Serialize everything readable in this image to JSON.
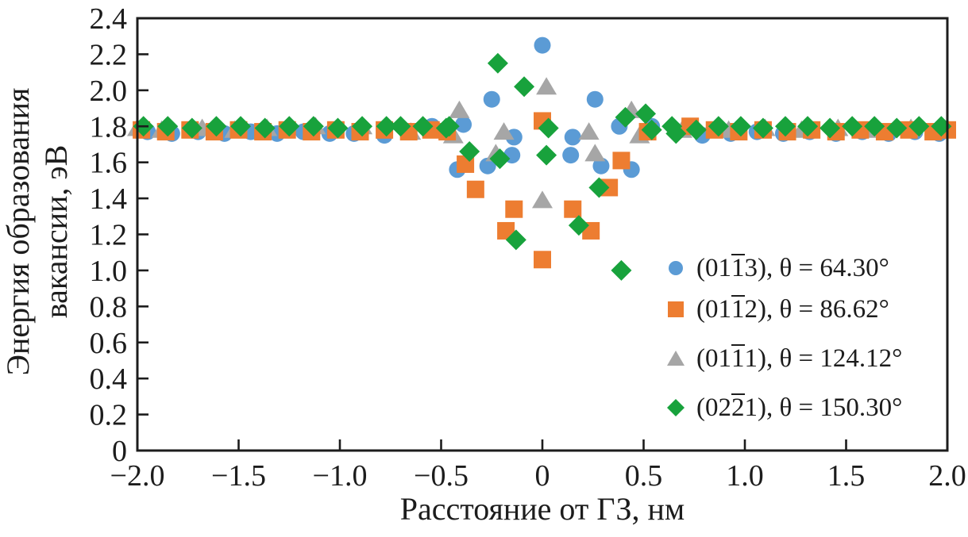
{
  "figure": {
    "kind": "scatter-plot-figure",
    "background": "#ffffff",
    "text_color": "#1c1c1c",
    "axis_color": "#1c1c1c"
  },
  "chart_data": {
    "type": "scatter",
    "title": "",
    "xlabel": "Расстояние от ГЗ, нм",
    "ylabel_lines": [
      "Энергия образования",
      "вакансии, эВ"
    ],
    "xlim": [
      -2.0,
      2.0
    ],
    "ylim": [
      0,
      2.4
    ],
    "grid": false,
    "legend_position": "inside lower right",
    "x_ticks": [
      {
        "value": -2.0,
        "label": "−2.0"
      },
      {
        "value": -1.5,
        "label": "−1.5"
      },
      {
        "value": -1.0,
        "label": "−1.0"
      },
      {
        "value": -0.5,
        "label": "−0.5"
      },
      {
        "value": 0.0,
        "label": "0"
      },
      {
        "value": 0.5,
        "label": "0.5"
      },
      {
        "value": 1.0,
        "label": "1.0"
      },
      {
        "value": 1.5,
        "label": "1.5"
      },
      {
        "value": 2.0,
        "label": "2.0"
      }
    ],
    "y_ticks": [
      {
        "value": 0.0,
        "label": "0"
      },
      {
        "value": 0.2,
        "label": "0.2"
      },
      {
        "value": 0.4,
        "label": "0.4"
      },
      {
        "value": 0.6,
        "label": "0.6"
      },
      {
        "value": 0.8,
        "label": "0.8"
      },
      {
        "value": 1.0,
        "label": "1.0"
      },
      {
        "value": 1.2,
        "label": "1.2"
      },
      {
        "value": 1.4,
        "label": "1.4"
      },
      {
        "value": 1.6,
        "label": "1.6"
      },
      {
        "value": 1.8,
        "label": "1.8"
      },
      {
        "value": 2.0,
        "label": "2.0"
      },
      {
        "value": 2.2,
        "label": "2.2"
      },
      {
        "value": 2.4,
        "label": "2.4"
      }
    ],
    "series": [
      {
        "name": "(011̅3), θ = 64.30°",
        "plane": "(011̅3)",
        "theta": "64.30°",
        "marker": "circle",
        "color": "#5b9bd5",
        "legend": {
          "pre": "(01",
          "bar": "1",
          "post": "3), θ = 64.30°"
        },
        "points": [
          [
            -1.95,
            1.77
          ],
          [
            -1.83,
            1.76
          ],
          [
            -1.7,
            1.77
          ],
          [
            -1.57,
            1.76
          ],
          [
            -1.44,
            1.77
          ],
          [
            -1.31,
            1.76
          ],
          [
            -1.18,
            1.77
          ],
          [
            -1.05,
            1.76
          ],
          [
            -0.93,
            1.76
          ],
          [
            -0.78,
            1.75
          ],
          [
            -0.545,
            1.8
          ],
          [
            -0.42,
            1.56
          ],
          [
            -0.39,
            1.81
          ],
          [
            -0.27,
            1.58
          ],
          [
            -0.25,
            1.95
          ],
          [
            -0.15,
            1.64
          ],
          [
            -0.14,
            1.74
          ],
          [
            0.0,
            2.25
          ],
          [
            0.14,
            1.64
          ],
          [
            0.15,
            1.74
          ],
          [
            0.26,
            1.95
          ],
          [
            0.29,
            1.58
          ],
          [
            0.38,
            1.8
          ],
          [
            0.44,
            1.56
          ],
          [
            0.54,
            1.8
          ],
          [
            0.79,
            1.75
          ],
          [
            0.93,
            1.76
          ],
          [
            1.06,
            1.77
          ],
          [
            1.19,
            1.76
          ],
          [
            1.32,
            1.77
          ],
          [
            1.45,
            1.76
          ],
          [
            1.58,
            1.77
          ],
          [
            1.71,
            1.76
          ],
          [
            1.84,
            1.77
          ],
          [
            1.96,
            1.76
          ]
        ]
      },
      {
        "name": "(011̅2), θ = 86.62°",
        "plane": "(011̅2)",
        "theta": "86.62°",
        "marker": "square",
        "color": "#ed7d31",
        "legend": {
          "pre": "(01",
          "bar": "1",
          "post": "2), θ = 86.62°"
        },
        "points": [
          [
            -1.98,
            1.78
          ],
          [
            -1.86,
            1.77
          ],
          [
            -1.74,
            1.78
          ],
          [
            -1.62,
            1.77
          ],
          [
            -1.5,
            1.78
          ],
          [
            -1.38,
            1.77
          ],
          [
            -1.26,
            1.78
          ],
          [
            -1.14,
            1.77
          ],
          [
            -1.02,
            1.78
          ],
          [
            -0.9,
            1.77
          ],
          [
            -0.78,
            1.78
          ],
          [
            -0.66,
            1.77
          ],
          [
            -0.55,
            1.78
          ],
          [
            -0.47,
            1.77
          ],
          [
            -0.38,
            1.59
          ],
          [
            -0.33,
            1.45
          ],
          [
            -0.18,
            1.22
          ],
          [
            -0.14,
            1.34
          ],
          [
            0.0,
            1.83
          ],
          [
            0.0,
            1.06
          ],
          [
            0.15,
            1.34
          ],
          [
            0.24,
            1.22
          ],
          [
            0.33,
            1.46
          ],
          [
            0.39,
            1.61
          ],
          [
            0.52,
            1.77
          ],
          [
            0.73,
            1.8
          ],
          [
            0.85,
            1.78
          ],
          [
            0.97,
            1.77
          ],
          [
            1.09,
            1.78
          ],
          [
            1.21,
            1.77
          ],
          [
            1.33,
            1.78
          ],
          [
            1.45,
            1.77
          ],
          [
            1.57,
            1.78
          ],
          [
            1.69,
            1.77
          ],
          [
            1.81,
            1.78
          ],
          [
            1.93,
            1.77
          ],
          [
            2.0,
            1.78
          ]
        ]
      },
      {
        "name": "(011̅1), θ = 124.12°",
        "plane": "(011̅1)",
        "theta": "124.12°",
        "marker": "triangle",
        "color": "#a6a6a6",
        "legend": {
          "pre": "(01",
          "bar": "1",
          "post": "1), θ = 124.12°"
        },
        "points": [
          [
            -2.0,
            1.79
          ],
          [
            -1.88,
            1.78
          ],
          [
            -1.68,
            1.79
          ],
          [
            -1.52,
            1.78
          ],
          [
            -1.36,
            1.79
          ],
          [
            -1.12,
            1.8
          ],
          [
            -0.89,
            1.8
          ],
          [
            -0.65,
            1.77
          ],
          [
            -0.44,
            1.75
          ],
          [
            -0.41,
            1.89
          ],
          [
            -0.23,
            1.65
          ],
          [
            -0.19,
            1.77
          ],
          [
            0.02,
            2.02
          ],
          [
            0.0,
            1.39
          ],
          [
            0.23,
            1.77
          ],
          [
            0.26,
            1.65
          ],
          [
            0.44,
            1.89
          ],
          [
            0.48,
            1.75
          ],
          [
            0.69,
            1.78
          ],
          [
            0.92,
            1.78
          ],
          [
            1.1,
            1.79
          ],
          [
            1.28,
            1.78
          ],
          [
            1.46,
            1.79
          ],
          [
            1.64,
            1.78
          ],
          [
            1.82,
            1.79
          ],
          [
            1.97,
            1.78
          ]
        ]
      },
      {
        "name": "(022̅1), θ = 150.30°",
        "plane": "(022̅1)",
        "theta": "150.30°",
        "marker": "diamond",
        "color": "#18a23c",
        "legend": {
          "pre": "(02",
          "bar": "2",
          "post": "1), θ = 150.30°"
        },
        "points": [
          [
            -1.97,
            1.8
          ],
          [
            -1.85,
            1.8
          ],
          [
            -1.73,
            1.79
          ],
          [
            -1.61,
            1.8
          ],
          [
            -1.49,
            1.8
          ],
          [
            -1.37,
            1.79
          ],
          [
            -1.25,
            1.8
          ],
          [
            -1.13,
            1.8
          ],
          [
            -1.01,
            1.79
          ],
          [
            -0.89,
            1.8
          ],
          [
            -0.77,
            1.8
          ],
          [
            -0.7,
            1.8
          ],
          [
            -0.59,
            1.8
          ],
          [
            -0.475,
            1.79
          ],
          [
            -0.46,
            1.8
          ],
          [
            -0.36,
            1.66
          ],
          [
            -0.22,
            2.15
          ],
          [
            -0.21,
            1.62
          ],
          [
            -0.13,
            1.17
          ],
          [
            -0.09,
            2.02
          ],
          [
            0.02,
            1.64
          ],
          [
            0.03,
            1.79
          ],
          [
            0.18,
            1.25
          ],
          [
            0.28,
            1.46
          ],
          [
            0.39,
            1.0
          ],
          [
            0.41,
            1.85
          ],
          [
            0.51,
            1.87
          ],
          [
            0.54,
            1.78
          ],
          [
            0.64,
            1.8
          ],
          [
            0.66,
            1.76
          ],
          [
            0.76,
            1.78
          ],
          [
            0.87,
            1.8
          ],
          [
            0.98,
            1.8
          ],
          [
            1.09,
            1.79
          ],
          [
            1.2,
            1.8
          ],
          [
            1.31,
            1.8
          ],
          [
            1.42,
            1.79
          ],
          [
            1.53,
            1.8
          ],
          [
            1.64,
            1.8
          ],
          [
            1.75,
            1.79
          ],
          [
            1.86,
            1.8
          ],
          [
            1.97,
            1.8
          ]
        ]
      }
    ]
  }
}
